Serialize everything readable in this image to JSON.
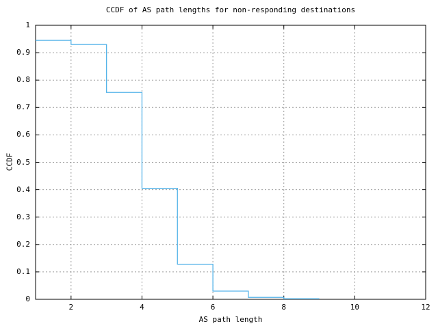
{
  "chart_data": {
    "type": "line",
    "subtype": "step-function-ccdf",
    "title": "CCDF of AS path lengths for non-responding destinations",
    "xlabel": "AS path length",
    "ylabel": "CCDF",
    "xlim": [
      1,
      12
    ],
    "ylim": [
      0,
      1
    ],
    "grid": true,
    "legend": "none",
    "x_ticks": [
      {
        "value": 2,
        "label": "2"
      },
      {
        "value": 4,
        "label": "4"
      },
      {
        "value": 6,
        "label": "6"
      },
      {
        "value": 8,
        "label": "8"
      },
      {
        "value": 10,
        "label": "10"
      },
      {
        "value": 12,
        "label": "12"
      }
    ],
    "y_ticks": [
      {
        "value": 0,
        "label": "0"
      },
      {
        "value": 0.1,
        "label": "0.1"
      },
      {
        "value": 0.2,
        "label": "0.2"
      },
      {
        "value": 0.3,
        "label": "0.3"
      },
      {
        "value": 0.4,
        "label": "0.4"
      },
      {
        "value": 0.5,
        "label": "0.5"
      },
      {
        "value": 0.6,
        "label": "0.6"
      },
      {
        "value": 0.7,
        "label": "0.7"
      },
      {
        "value": 0.8,
        "label": "0.8"
      },
      {
        "value": 0.9,
        "label": "0.9"
      },
      {
        "value": 1,
        "label": "1"
      }
    ],
    "series": [
      {
        "name": "CCDF",
        "color": "#56b4e9",
        "step_levels": [
          {
            "x_start": 1,
            "x_end": 2,
            "y": 0.945
          },
          {
            "x_start": 2,
            "x_end": 3,
            "y": 0.93
          },
          {
            "x_start": 3,
            "x_end": 4,
            "y": 0.755
          },
          {
            "x_start": 4,
            "x_end": 5,
            "y": 0.405
          },
          {
            "x_start": 5,
            "x_end": 6,
            "y": 0.128
          },
          {
            "x_start": 6,
            "x_end": 7,
            "y": 0.03
          },
          {
            "x_start": 7,
            "x_end": 8,
            "y": 0.007
          },
          {
            "x_start": 8,
            "x_end": 9,
            "y": 0.002
          }
        ]
      }
    ],
    "colors": {
      "background": "#ffffff",
      "axis": "#000000",
      "grid": "#9a9a9a",
      "line": "#56b4e9"
    }
  }
}
